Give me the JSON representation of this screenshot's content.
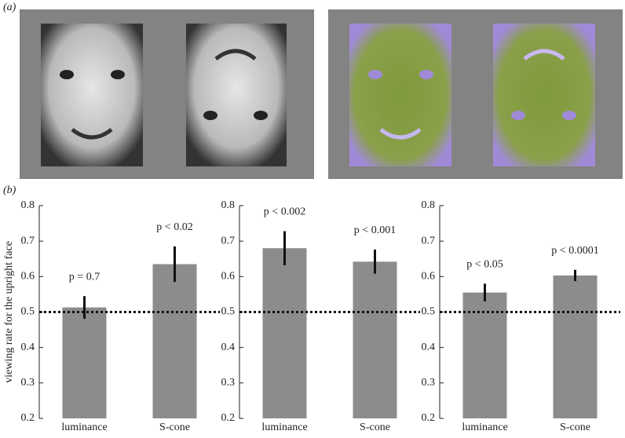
{
  "panel_labels": [
    "(a)",
    "(b)"
  ],
  "chart_data": [
    {
      "type": "bar",
      "ylabel": "viewing rate for the upright face",
      "categories": [
        "luminance",
        "S-cone"
      ],
      "values": [
        0.513,
        0.635
      ],
      "errors": [
        0.032,
        0.05
      ],
      "annotations": [
        "p = 0.7",
        "p < 0.02"
      ],
      "color": "#8c8c8c",
      "ylim": [
        0.2,
        0.8
      ],
      "yticks": [
        0.2,
        0.3,
        0.4,
        0.5,
        0.6,
        0.7,
        0.8
      ],
      "reference_line": 0.5
    },
    {
      "type": "bar",
      "categories": [
        "luminance",
        "S-cone"
      ],
      "values": [
        0.68,
        0.642
      ],
      "errors": [
        0.048,
        0.034
      ],
      "annotations": [
        "p < 0.002",
        "p < 0.001"
      ],
      "color": "#8c8c8c",
      "ylim": [
        0.2,
        0.8
      ],
      "yticks": [
        0.2,
        0.3,
        0.4,
        0.5,
        0.6,
        0.7,
        0.8
      ],
      "reference_line": 0.5
    },
    {
      "type": "bar",
      "categories": [
        "luminance",
        "S-cone"
      ],
      "values": [
        0.555,
        0.603
      ],
      "errors": [
        0.025,
        0.016
      ],
      "annotations": [
        "p < 0.05",
        "p < 0.0001"
      ],
      "color": "#8c8c8c",
      "ylim": [
        0.2,
        0.8
      ],
      "yticks": [
        0.2,
        0.3,
        0.4,
        0.5,
        0.6,
        0.7,
        0.8
      ],
      "reference_line": 0.5
    }
  ]
}
